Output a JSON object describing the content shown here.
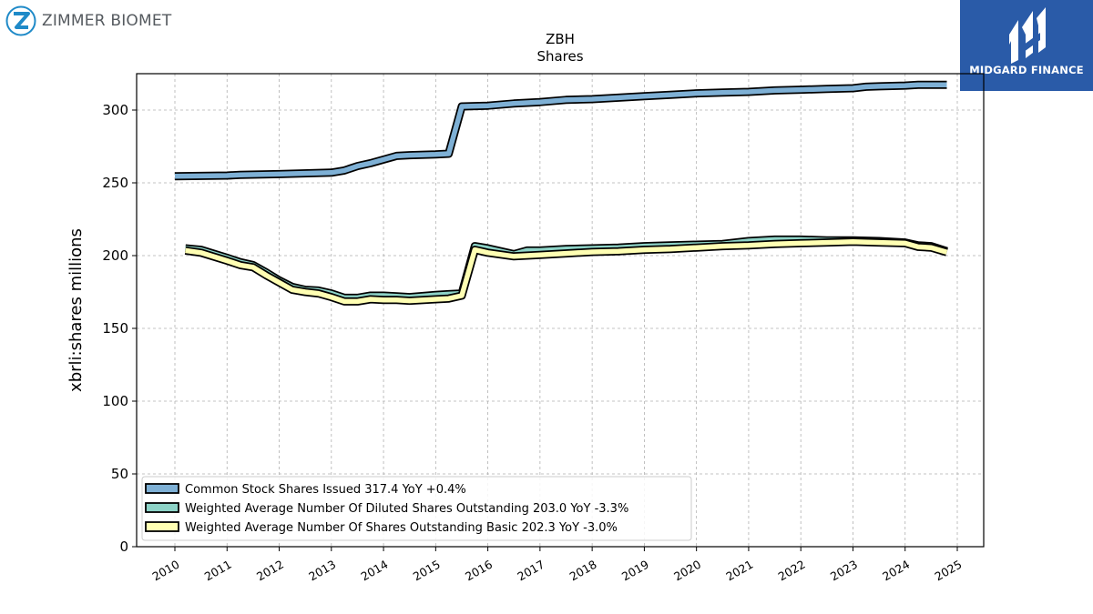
{
  "header": {
    "company_logo_text": "ZIMMER BIOMET",
    "brand_logo_text": "MIDGARD FINANCE"
  },
  "colors": {
    "common_stock": "#7eb0d5",
    "diluted": "#8dd3c7",
    "basic": "#ffffb3",
    "outline": "#000000",
    "brand_bg": "#2a5ba8",
    "zimmer_blue": "#1f8ac8"
  },
  "chart_data": {
    "type": "line",
    "title": "ZBH",
    "subtitle": "Shares",
    "xlabel": "",
    "ylabel": "xbrli:shares millions",
    "xlim": [
      2009.7,
      2025.5
    ],
    "ylim": [
      0,
      325
    ],
    "x_ticks": [
      "2010",
      "2011",
      "2012",
      "2013",
      "2014",
      "2015",
      "2016",
      "2017",
      "2018",
      "2019",
      "2020",
      "2021",
      "2022",
      "2023",
      "2024",
      "2025"
    ],
    "y_ticks": [
      "0",
      "50",
      "100",
      "150",
      "200",
      "250",
      "300"
    ],
    "grid": true,
    "legend_position": "lower-left",
    "series": [
      {
        "name": "Common Stock Shares Issued",
        "legend": "Common Stock Shares Issued  317.4 YoY +0.4%",
        "color_key": "common_stock",
        "x": [
          2010.0,
          2011.0,
          2011.25,
          2012.0,
          2013.0,
          2013.25,
          2013.5,
          2013.75,
          2014.0,
          2014.25,
          2014.5,
          2015.0,
          2015.25,
          2015.5,
          2016.0,
          2016.5,
          2017.0,
          2017.5,
          2018.0,
          2018.5,
          2019.0,
          2019.5,
          2020.0,
          2020.5,
          2021.0,
          2021.5,
          2022.0,
          2022.5,
          2023.0,
          2023.25,
          2023.5,
          2024.0,
          2024.25,
          2024.5,
          2024.8
        ],
        "values": [
          254.5,
          255.0,
          255.5,
          256.0,
          257.0,
          258.5,
          261.5,
          263.5,
          266.0,
          268.5,
          269.0,
          269.5,
          270.0,
          302.5,
          303.0,
          304.5,
          305.5,
          307.0,
          307.5,
          308.5,
          309.5,
          310.5,
          311.5,
          312.0,
          312.5,
          313.5,
          314.0,
          314.5,
          315.0,
          316.0,
          316.3,
          316.8,
          317.4,
          317.4,
          317.4
        ]
      },
      {
        "name": "Weighted Average Number Of Diluted Shares Outstanding",
        "legend": "Weighted Average Number Of Diluted Shares Outstanding  203.0 YoY -3.3%",
        "color_key": "diluted",
        "x": [
          2010.2,
          2010.5,
          2011.0,
          2011.25,
          2011.5,
          2011.75,
          2012.0,
          2012.25,
          2012.5,
          2012.75,
          2013.0,
          2013.25,
          2013.5,
          2013.75,
          2014.0,
          2014.25,
          2014.5,
          2015.0,
          2015.25,
          2015.5,
          2015.75,
          2016.0,
          2016.5,
          2016.75,
          2017.0,
          2017.5,
          2018.0,
          2018.5,
          2019.0,
          2019.5,
          2020.0,
          2020.5,
          2021.0,
          2021.5,
          2022.0,
          2022.5,
          2023.0,
          2023.5,
          2024.0,
          2024.25,
          2024.5,
          2024.8
        ],
        "values": [
          205.0,
          204.0,
          198.5,
          195.5,
          193.5,
          188.5,
          183.0,
          178.5,
          176.5,
          176.0,
          174.0,
          171.0,
          171.0,
          172.5,
          172.5,
          172.0,
          171.5,
          173.0,
          173.5,
          174.0,
          206.5,
          205.0,
          201.0,
          203.5,
          203.5,
          204.5,
          205.0,
          205.5,
          206.5,
          207.0,
          207.5,
          208.0,
          210.0,
          211.0,
          211.0,
          210.5,
          210.5,
          210.0,
          209.0,
          207.0,
          206.5,
          203.0
        ]
      },
      {
        "name": "Weighted Average Number Of Shares Outstanding Basic",
        "legend": "Weighted Average Number Of Shares Outstanding Basic  202.3 YoY -3.0%",
        "color_key": "basic",
        "x": [
          2010.2,
          2010.5,
          2011.0,
          2011.25,
          2011.5,
          2011.75,
          2012.0,
          2012.25,
          2012.5,
          2012.75,
          2013.0,
          2013.25,
          2013.5,
          2013.75,
          2014.0,
          2014.25,
          2014.5,
          2015.0,
          2015.25,
          2015.5,
          2015.75,
          2016.0,
          2016.5,
          2016.75,
          2017.0,
          2017.5,
          2018.0,
          2018.5,
          2019.0,
          2019.5,
          2020.0,
          2020.5,
          2021.0,
          2021.5,
          2022.0,
          2022.5,
          2023.0,
          2023.5,
          2024.0,
          2024.25,
          2024.5,
          2024.8
        ],
        "values": [
          203.5,
          202.0,
          196.5,
          193.5,
          192.0,
          186.5,
          181.5,
          176.5,
          175.0,
          174.0,
          171.5,
          168.5,
          168.5,
          170.0,
          169.5,
          169.5,
          169.0,
          170.0,
          170.5,
          172.5,
          204.0,
          202.0,
          199.5,
          200.0,
          200.5,
          201.5,
          202.5,
          203.0,
          204.0,
          204.5,
          205.5,
          206.5,
          207.0,
          208.0,
          208.5,
          209.0,
          209.5,
          209.0,
          208.5,
          206.0,
          205.5,
          202.3
        ]
      }
    ]
  }
}
